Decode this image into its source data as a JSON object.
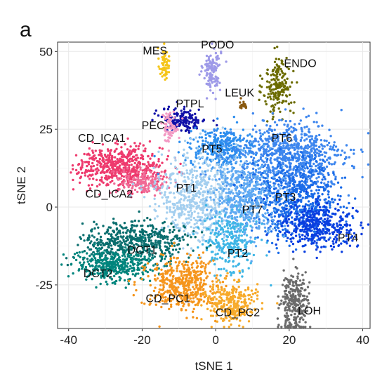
{
  "chart_data": {
    "type": "scatter",
    "panel_letter": "a",
    "xlabel": "tSNE 1",
    "ylabel": "tSNE 2",
    "xlim": [
      -43,
      42
    ],
    "ylim": [
      -39,
      53
    ],
    "xticks": [
      -40,
      -20,
      0,
      20,
      40
    ],
    "yticks": [
      -25,
      0,
      25,
      50
    ],
    "grid": true,
    "legend": "none",
    "clusters": [
      {
        "name": "MES",
        "label": "MES",
        "color": "#F5C518",
        "label_pos": [
          -16.5,
          49
        ],
        "blobs": [
          {
            "center": [
              -14,
              46
            ],
            "spread": [
              0.7,
              2.6
            ],
            "n": 60
          }
        ]
      },
      {
        "name": "PODO",
        "label": "PODO",
        "color": "#9E9AE8",
        "label_pos": [
          0.5,
          51
        ],
        "blobs": [
          {
            "center": [
              -1,
              44
            ],
            "spread": [
              1.2,
              3.5
            ],
            "n": 130
          }
        ]
      },
      {
        "name": "ENDO",
        "label": "ENDO",
        "color": "#6B6B00",
        "label_pos": [
          23,
          45
        ],
        "blobs": [
          {
            "center": [
              17,
              38.5
            ],
            "spread": [
              2.0,
              4.8
            ],
            "n": 180
          }
        ]
      },
      {
        "name": "LEUK",
        "label": "LEUK",
        "color": "#8A5A10",
        "label_pos": [
          6.5,
          35.5
        ],
        "blobs": [
          {
            "center": [
              7.5,
              33
            ],
            "spread": [
              0.6,
              0.7
            ],
            "n": 22
          }
        ]
      },
      {
        "name": "PTPL",
        "label": "PTPL",
        "color": "#1010A8",
        "label_pos": [
          -7,
          32
        ],
        "blobs": [
          {
            "center": [
              -8.5,
              28
            ],
            "spread": [
              3.0,
              1.9
            ],
            "n": 150
          }
        ]
      },
      {
        "name": "PEC",
        "label": "PEC",
        "color": "#F39AC4",
        "label_pos": [
          -17,
          25
        ],
        "blobs": [
          {
            "center": [
              -12.5,
              26
            ],
            "spread": [
              1.2,
              2.4
            ],
            "n": 70
          }
        ]
      },
      {
        "name": "CD_ICA1",
        "label": "CD_ICA1",
        "color": "#EE3B6E",
        "label_pos": [
          -31,
          21
        ],
        "blobs": [
          {
            "center": [
              -26,
              13
            ],
            "spread": [
              5.8,
              3.2
            ],
            "n": 520
          }
        ]
      },
      {
        "name": "CD_ICA2",
        "label": "CD_ICA2",
        "color": "#F06A96",
        "label_pos": [
          -29,
          3
        ],
        "blobs": [
          {
            "center": [
              -20,
              8
            ],
            "spread": [
              3.5,
              2.0
            ],
            "n": 160
          }
        ]
      },
      {
        "name": "PT5",
        "label": "PT5",
        "color": "#2B8DEE",
        "label_pos": [
          -1,
          17.5
        ],
        "blobs": [
          {
            "center": [
              2,
              19
            ],
            "spread": [
              4.5,
              3.0
            ],
            "n": 320
          }
        ]
      },
      {
        "name": "PT6",
        "label": "PT6",
        "color": "#3D86EE",
        "label_pos": [
          18,
          21
        ],
        "blobs": [
          {
            "center": [
              20,
              16
            ],
            "spread": [
              7.5,
              5.5
            ],
            "n": 800
          }
        ]
      },
      {
        "name": "PT1",
        "label": "PT1",
        "color": "#A4CFEF",
        "label_pos": [
          -8,
          5
        ],
        "blobs": [
          {
            "center": [
              -5,
              3
            ],
            "spread": [
              5.5,
              7.5
            ],
            "n": 650
          }
        ]
      },
      {
        "name": "PT3",
        "label": "PT3",
        "color": "#1A6BE8",
        "label_pos": [
          19,
          2
        ],
        "blobs": [
          {
            "center": [
              22,
              2
            ],
            "spread": [
              6.0,
              6.0
            ],
            "n": 650
          }
        ]
      },
      {
        "name": "PT7",
        "label": "PT7",
        "color": "#5FA9F2",
        "label_pos": [
          10,
          -2
        ],
        "blobs": [
          {
            "center": [
              8,
              3
            ],
            "spread": [
              4.5,
              6.0
            ],
            "n": 480
          }
        ]
      },
      {
        "name": "PT4",
        "label": "PT4",
        "color": "#0A3FE0",
        "label_pos": [
          36,
          -11
        ],
        "blobs": [
          {
            "center": [
              28,
              -6
            ],
            "spread": [
              5.0,
              3.5
            ],
            "n": 380
          }
        ]
      },
      {
        "name": "PT2",
        "label": "PT2",
        "color": "#3FB6E6",
        "label_pos": [
          6,
          -16
        ],
        "blobs": [
          {
            "center": [
              4,
              -12
            ],
            "spread": [
              3.5,
              5.0
            ],
            "n": 260
          }
        ]
      },
      {
        "name": "DCT1",
        "label": "DCT1",
        "color": "#0A6E6E",
        "label_pos": [
          -20,
          -15
        ],
        "blobs": [
          {
            "center": [
              -22,
              -11
            ],
            "spread": [
              7.0,
              3.2
            ],
            "n": 500
          }
        ]
      },
      {
        "name": "DCT2",
        "label": "DCT2",
        "color": "#00857D",
        "label_pos": [
          -32,
          -22.5
        ],
        "blobs": [
          {
            "center": [
              -28,
              -19
            ],
            "spread": [
              5.5,
              2.6
            ],
            "n": 380
          }
        ]
      },
      {
        "name": "CD_PC1",
        "label": "CD_PC1",
        "color": "#F5951C",
        "label_pos": [
          -13,
          -30.5
        ],
        "blobs": [
          {
            "center": [
              -9,
              -25
            ],
            "spread": [
              5.0,
              4.2
            ],
            "n": 460
          }
        ]
      },
      {
        "name": "CD_PC2",
        "label": "CD_PC2",
        "color": "#F7AA2A",
        "label_pos": [
          6,
          -35
        ],
        "blobs": [
          {
            "center": [
              4,
              -31
            ],
            "spread": [
              3.5,
              3.2
            ],
            "n": 280
          }
        ]
      },
      {
        "name": "LOH",
        "label": "LOH",
        "color": "#6B6B6B",
        "label_pos": [
          25.5,
          -34.5
        ],
        "blobs": [
          {
            "center": [
              21.5,
              -31
            ],
            "spread": [
              1.9,
              4.8
            ],
            "n": 280
          }
        ]
      }
    ]
  }
}
